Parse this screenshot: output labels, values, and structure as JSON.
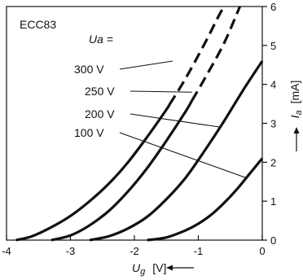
{
  "chart_data": {
    "type": "line",
    "title": "ECC83",
    "xlabel_main": "U",
    "xlabel_sub": "g",
    "xlabel_unit": "[V]",
    "ylabel_main": "I",
    "ylabel_sub": "a",
    "ylabel_unit": "[mA]",
    "xlim": [
      -4,
      0
    ],
    "ylim": [
      0,
      6
    ],
    "x_ticks": [
      "-4",
      "-3",
      "-2",
      "-1",
      "0"
    ],
    "y_ticks": [
      "0",
      "1",
      "2",
      "3",
      "4",
      "5",
      "6"
    ],
    "legend_header": "Ua =",
    "series": [
      {
        "name": "100 V",
        "points": [
          [
            -1.8,
            0
          ],
          [
            -1.5,
            0.07
          ],
          [
            -1.2,
            0.25
          ],
          [
            -1.0,
            0.42
          ],
          [
            -0.8,
            0.65
          ],
          [
            -0.6,
            0.95
          ],
          [
            -0.4,
            1.3
          ],
          [
            -0.2,
            1.7
          ],
          [
            0.0,
            2.1
          ]
        ],
        "dashed_from_x": null,
        "label_anchor": [
          -0.25,
          1.6
        ]
      },
      {
        "name": "200 V",
        "points": [
          [
            -2.7,
            0
          ],
          [
            -2.4,
            0.1
          ],
          [
            -2.1,
            0.3
          ],
          [
            -1.8,
            0.6
          ],
          [
            -1.5,
            1.05
          ],
          [
            -1.2,
            1.6
          ],
          [
            -0.9,
            2.3
          ],
          [
            -0.6,
            3.05
          ],
          [
            -0.3,
            3.85
          ],
          [
            0.0,
            4.6
          ]
        ],
        "dashed_from_x": null,
        "label_anchor": [
          -0.65,
          2.9
        ]
      },
      {
        "name": "250 V",
        "points": [
          [
            -3.3,
            0
          ],
          [
            -3.0,
            0.12
          ],
          [
            -2.7,
            0.38
          ],
          [
            -2.4,
            0.75
          ],
          [
            -2.1,
            1.25
          ],
          [
            -1.8,
            1.85
          ],
          [
            -1.5,
            2.55
          ],
          [
            -1.2,
            3.3
          ],
          [
            -0.9,
            4.15
          ],
          [
            -0.6,
            5.05
          ],
          [
            -0.35,
            6.0
          ]
        ],
        "dashed_from_x": -1.1,
        "label_anchor": [
          -1.1,
          3.8
        ]
      },
      {
        "name": "300 V",
        "points": [
          [
            -3.85,
            0
          ],
          [
            -3.6,
            0.1
          ],
          [
            -3.3,
            0.33
          ],
          [
            -3.0,
            0.62
          ],
          [
            -2.7,
            1.0
          ],
          [
            -2.4,
            1.45
          ],
          [
            -2.1,
            2.0
          ],
          [
            -1.8,
            2.65
          ],
          [
            -1.5,
            3.35
          ],
          [
            -1.2,
            4.15
          ],
          [
            -0.9,
            5.05
          ],
          [
            -0.7,
            5.7
          ],
          [
            -0.6,
            6.0
          ]
        ],
        "dashed_from_x": -1.45,
        "label_anchor": [
          -1.4,
          4.6
        ]
      }
    ],
    "grid": false,
    "legend_placement": "inline labels with leader lines (upper-left)"
  }
}
